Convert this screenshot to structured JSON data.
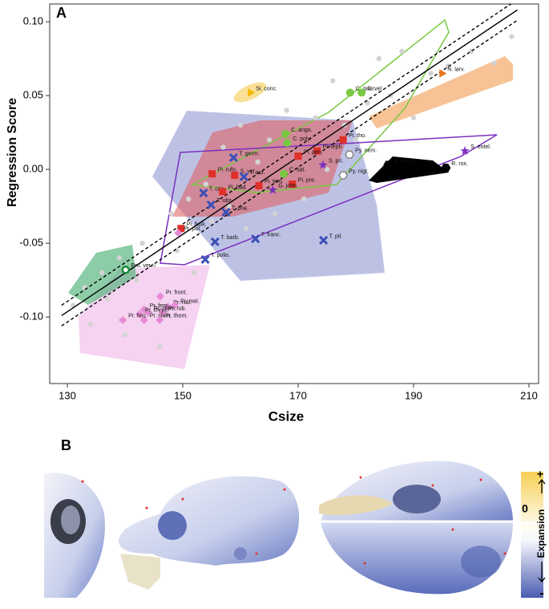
{
  "chart_data": {
    "type": "scatter",
    "panel_label": "A",
    "x_label": "Csize",
    "y_label": "Regression Score",
    "xlim": [
      126.94,
      211.67
    ],
    "ylim": [
      -0.145,
      0.112
    ],
    "xticks": [
      130,
      150,
      170,
      190,
      210
    ],
    "yticks": [
      {
        "value": 0.1,
        "label": "0.10"
      },
      {
        "value": 0.05,
        "label": "0.05"
      },
      {
        "value": 0,
        "label": "0.00"
      },
      {
        "value": -0.05,
        "label": "-0.05"
      },
      {
        "value": -0.1,
        "label": "-0.10"
      }
    ],
    "points": {
      "color": "#d3d3d3",
      "x": [
        131,
        133,
        134,
        136,
        137,
        139,
        140,
        142,
        143,
        145,
        146,
        148,
        149,
        151,
        152,
        154,
        155,
        157,
        158,
        160,
        161,
        163,
        165,
        166,
        168,
        170,
        171,
        173,
        175,
        176,
        178,
        180,
        182,
        184,
        186,
        188,
        190,
        193,
        196,
        200,
        204,
        207
      ],
      "y": [
        -0.092,
        -0.08,
        -0.105,
        -0.07,
        -0.088,
        -0.06,
        -0.112,
        -0.075,
        -0.05,
        -0.065,
        -0.12,
        -0.03,
        -0.055,
        -0.02,
        -0.07,
        -0.01,
        -0.035,
        0.015,
        -0.025,
        0.03,
        -0.04,
        0.005,
        0.02,
        -0.03,
        0.04,
        0.01,
        -0.02,
        0.035,
        0,
        0.06,
        0.03,
        0.02,
        0.045,
        0.075,
        0.05,
        0.08,
        0.035,
        0.065,
        0.07,
        0.08,
        0.072,
        0.09
      ]
    },
    "fit": {
      "x": [
        129,
        208
      ],
      "y": [
        -0.099,
        0.108
      ]
    },
    "ci_upper": {
      "x": [
        129,
        208
      ],
      "y": [
        -0.092,
        0.115
      ]
    },
    "ci_lower": {
      "x": [
        129,
        208
      ],
      "y": [
        -0.106,
        0.101
      ]
    },
    "species": [
      {
        "name": "Si. conc.",
        "x": 161.7,
        "y": 0.052,
        "marker": "triangle",
        "color": "#f5b800"
      },
      {
        "name": "C. guer.",
        "x": 179.0,
        "y": 0.052,
        "marker": "circle",
        "color": "#7ac943"
      },
      {
        "name": "C. vel.",
        "x": 181.0,
        "y": 0.052,
        "marker": "circle",
        "color": "#7ac943"
      },
      {
        "name": "N. larv.",
        "x": 194.9,
        "y": 0.065,
        "marker": "triangle",
        "color": "#e8731a"
      },
      {
        "name": "C. ango.",
        "x": 167.8,
        "y": 0.024,
        "marker": "circle",
        "color": "#7ac943"
      },
      {
        "name": "C. poly.",
        "x": 168.1,
        "y": 0.018,
        "marker": "circle",
        "color": "#7ac943"
      },
      {
        "name": "Pi. tho.",
        "x": 177.8,
        "y": 0.02,
        "marker": "square",
        "color": "#e0302a"
      },
      {
        "name": "Pi. teph.",
        "x": 173.3,
        "y": 0.0125,
        "marker": "square",
        "color": "#e0302a"
      },
      {
        "name": "Py. nem.",
        "x": 178.9,
        "y": 0.01,
        "marker": "open-hexagon",
        "color": "#888888"
      },
      {
        "name": "R. avun.",
        "x": 185.6,
        "y": 0.003,
        "marker": "hexagon",
        "color": "#000000"
      },
      {
        "name": "S. entel.",
        "x": 198.9,
        "y": 0.0125,
        "marker": "star",
        "color": "#7b2fbf"
      },
      {
        "name": "R. rox.",
        "x": 195.6,
        "y": 0.001,
        "marker": "hexagon",
        "color": "#000000"
      },
      {
        "name": "T. germ.",
        "x": 158.8,
        "y": 0.008,
        "marker": "x",
        "color": "#3c4fb5"
      },
      {
        "name": "Pi. pen.",
        "x": 170.0,
        "y": 0.009,
        "marker": "square",
        "color": "#e0302a"
      },
      {
        "name": "C. sat.",
        "x": 167.5,
        "y": -0.003,
        "marker": "circle",
        "color": "#7ac943"
      },
      {
        "name": "S. pri.",
        "x": 174.3,
        "y": 0.003,
        "marker": "star",
        "color": "#7b2fbf"
      },
      {
        "name": "Py. nigr.",
        "x": 177.8,
        "y": -0.004,
        "marker": "open-hexagon",
        "color": "#888888"
      },
      {
        "name": "Pi. rufo.",
        "x": 155.1,
        "y": -0.003,
        "marker": "square",
        "color": "#e0302a"
      },
      {
        "name": "T. aur.",
        "x": 160.6,
        "y": -0.005,
        "marker": "x",
        "color": "#3c4fb5"
      },
      {
        "name": "S. vet.",
        "x": 159.0,
        "y": -0.004,
        "marker": "square",
        "color": "#e0302a"
      },
      {
        "name": "Pi. tem.",
        "x": 163.2,
        "y": -0.011,
        "marker": "square",
        "color": "#e0302a"
      },
      {
        "name": "Pi. pre.",
        "x": 169.0,
        "y": -0.01,
        "marker": "square",
        "color": "#e0302a"
      },
      {
        "name": "G. john.",
        "x": 165.6,
        "y": -0.014,
        "marker": "star",
        "color": "#7b2fbf"
      },
      {
        "name": "T. cris.",
        "x": 153.6,
        "y": -0.016,
        "marker": "x",
        "color": "#3c4fb5"
      },
      {
        "name": "Pi. bad.",
        "x": 156.9,
        "y": -0.015,
        "marker": "square",
        "color": "#e0302a"
      },
      {
        "name": "T. obs.",
        "x": 154.9,
        "y": -0.024,
        "marker": "x",
        "color": "#3c4fb5"
      },
      {
        "name": "T. pha.",
        "x": 157.5,
        "y": -0.029,
        "marker": "x",
        "color": "#3c4fb5"
      },
      {
        "name": "Pi. fusk.",
        "x": 149.7,
        "y": -0.04,
        "marker": "square",
        "color": "#e0302a"
      },
      {
        "name": "Pr. pol.",
        "x": 149.2,
        "y": -0.043,
        "marker": "diamond",
        "color": "#e58bd3"
      },
      {
        "name": "T. barb.",
        "x": 155.6,
        "y": -0.049,
        "marker": "x",
        "color": "#3c4fb5"
      },
      {
        "name": "T. franc.",
        "x": 162.6,
        "y": -0.047,
        "marker": "x",
        "color": "#3c4fb5"
      },
      {
        "name": "T. pil.",
        "x": 174.4,
        "y": -0.048,
        "marker": "x",
        "color": "#3c4fb5"
      },
      {
        "name": "T. polio.",
        "x": 153.9,
        "y": -0.061,
        "marker": "x",
        "color": "#3c4fb5"
      },
      {
        "name": "Pro. ver.",
        "x": 140.1,
        "y": -0.068,
        "marker": "open-circle",
        "color": "#1e8a3a"
      },
      {
        "name": "Pr. front.",
        "x": 146.1,
        "y": -0.086,
        "marker": "diamond",
        "color": "#e58bd3"
      },
      {
        "name": "Pr. rob.",
        "x": 147.4,
        "y": -0.093,
        "marker": "diamond",
        "color": "#e58bd3"
      },
      {
        "name": "Pr. fem.",
        "x": 143.3,
        "y": -0.095,
        "marker": "diamond",
        "color": "#e58bd3"
      },
      {
        "name": "Pr. mel.",
        "x": 148.6,
        "y": -0.092,
        "marker": "diamond",
        "color": "#e58bd3"
      },
      {
        "name": "Pr. crom.",
        "x": 144.0,
        "y": -0.097,
        "marker": "diamond",
        "color": "#e58bd3"
      },
      {
        "name": "Pr. rub.",
        "x": 146.5,
        "y": -0.097,
        "marker": "diamond",
        "color": "#e58bd3"
      },
      {
        "name": "Pr. chrys.",
        "x": 142.5,
        "y": -0.098,
        "marker": "diamond",
        "color": "#e58bd3"
      },
      {
        "name": "Pr. siam.",
        "x": 143.3,
        "y": -0.102,
        "marker": "diamond",
        "color": "#e58bd3"
      },
      {
        "name": "Pr. thom.",
        "x": 146.0,
        "y": -0.102,
        "marker": "diamond",
        "color": "#e58bd3"
      },
      {
        "name": "Pr. hos.",
        "x": 139.6,
        "y": -0.102,
        "marker": "diamond",
        "color": "#e58bd3"
      }
    ]
  },
  "panel_b": {
    "label": "B",
    "colorbar": {
      "top": "+",
      "middle": "0",
      "bottom": "-",
      "title": "Expansion"
    }
  }
}
